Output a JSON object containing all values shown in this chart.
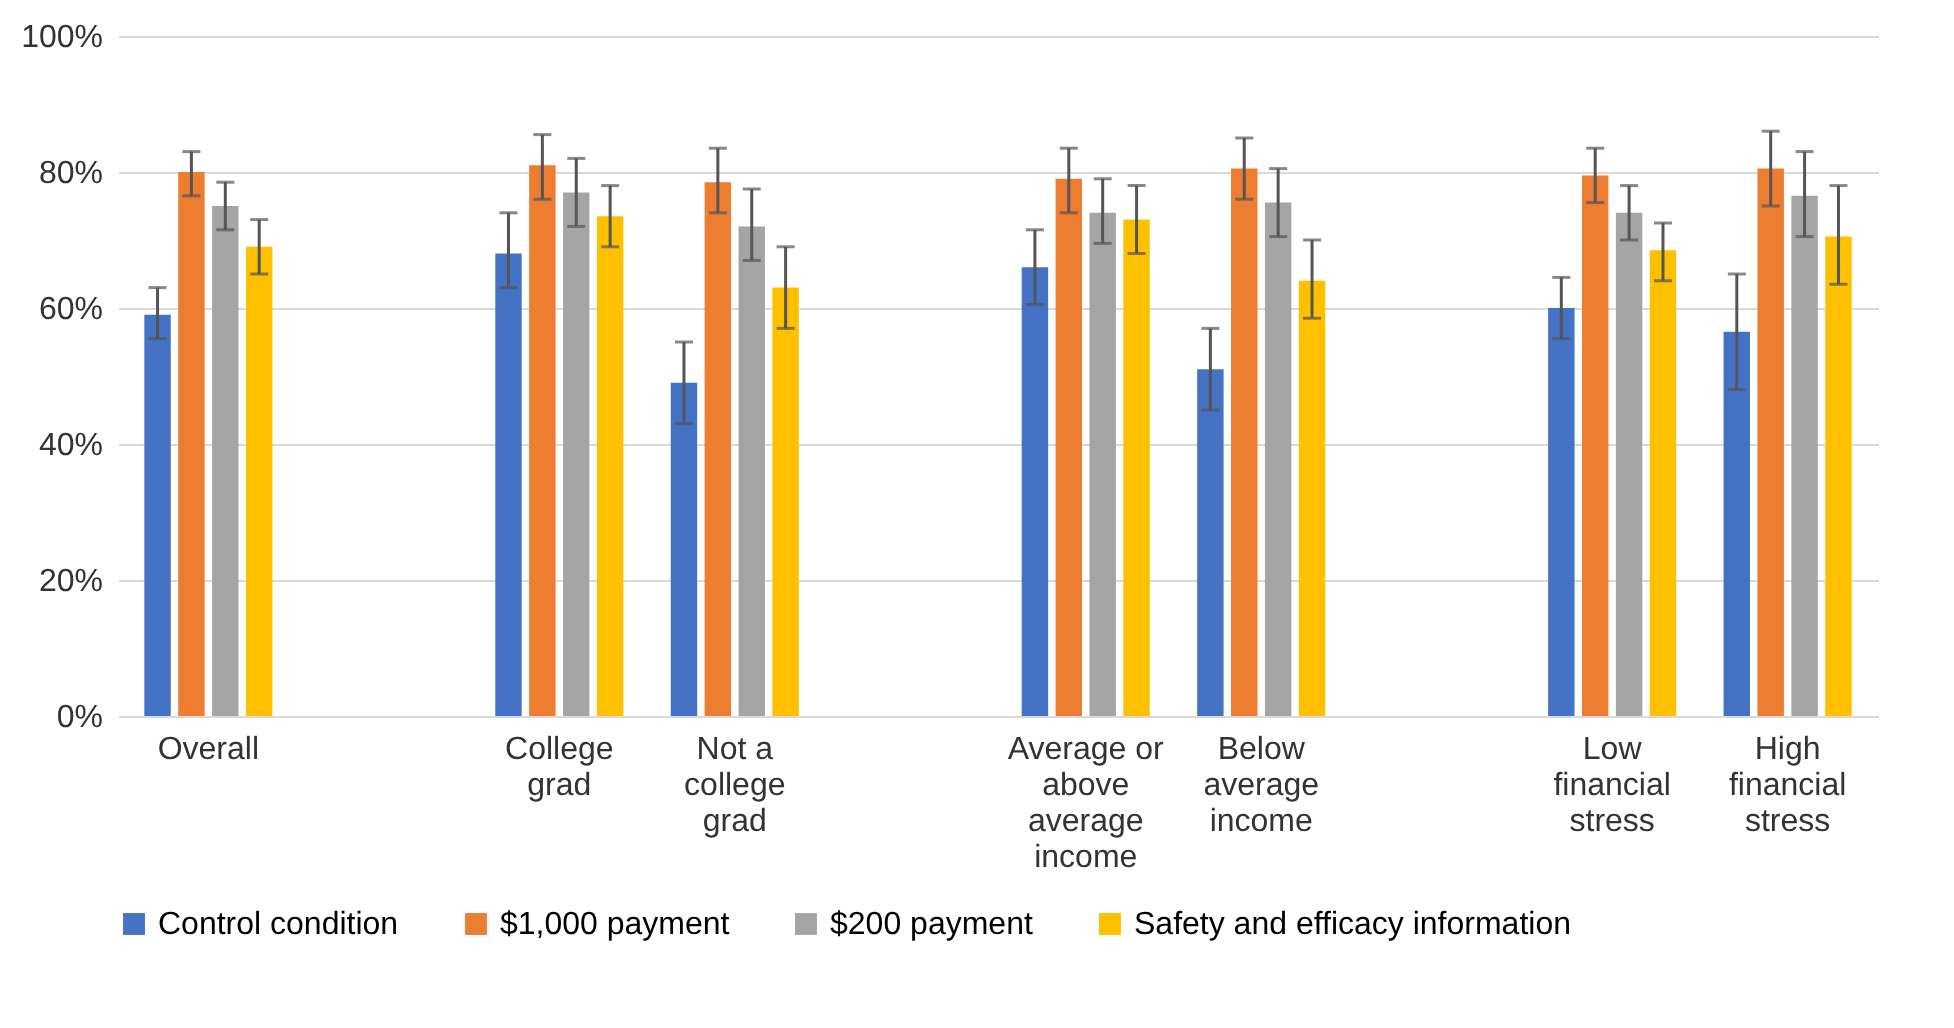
{
  "chart_data": {
    "type": "bar",
    "categories": [
      "Overall",
      null,
      "College grad",
      "Not a college grad",
      null,
      "Average or above average income",
      "Below average income",
      null,
      "Low financial stress",
      "High financial stress"
    ],
    "series": [
      {
        "name": "Control condition",
        "color": "#4472c4",
        "values": [
          59,
          null,
          68,
          49,
          null,
          66,
          51,
          null,
          60,
          56.5
        ],
        "errors": [
          [
            55.5,
            63
          ],
          null,
          [
            63,
            74
          ],
          [
            43,
            55
          ],
          null,
          [
            60.5,
            71.5
          ],
          [
            45,
            57
          ],
          null,
          [
            55.5,
            64.5
          ],
          [
            48,
            65
          ]
        ]
      },
      {
        "name": "$1,000 payment",
        "color": "#ed7d31",
        "values": [
          80,
          null,
          81,
          78.5,
          null,
          79,
          80.5,
          null,
          79.5,
          80.5
        ],
        "errors": [
          [
            76.5,
            83
          ],
          null,
          [
            76,
            85.5
          ],
          [
            74,
            83.5
          ],
          null,
          [
            74,
            83.5
          ],
          [
            76,
            85
          ],
          null,
          [
            75.5,
            83.5
          ],
          [
            75,
            86
          ]
        ]
      },
      {
        "name": "$200 payment",
        "color": "#a5a5a5",
        "values": [
          75,
          null,
          77,
          72,
          null,
          74,
          75.5,
          null,
          74,
          76.5
        ],
        "errors": [
          [
            71.5,
            78.5
          ],
          null,
          [
            72,
            82
          ],
          [
            67,
            77.5
          ],
          null,
          [
            69.5,
            79
          ],
          [
            70.5,
            80.5
          ],
          null,
          [
            70,
            78
          ],
          [
            70.5,
            83
          ]
        ]
      },
      {
        "name": "Safety and efficacy information",
        "color": "#ffc000",
        "values": [
          69,
          null,
          73.5,
          63,
          null,
          73,
          64,
          null,
          68.5,
          70.5
        ],
        "errors": [
          [
            65,
            73
          ],
          null,
          [
            69,
            78
          ],
          [
            57,
            69
          ],
          null,
          [
            68,
            78
          ],
          [
            58.5,
            70
          ],
          null,
          [
            64,
            72.5
          ],
          [
            63.5,
            78
          ]
        ]
      }
    ],
    "ylim": [
      0,
      100
    ],
    "yticks": [
      {
        "value": 0,
        "label": "0%"
      },
      {
        "value": 20,
        "label": "20%"
      },
      {
        "value": 40,
        "label": "40%"
      },
      {
        "value": 60,
        "label": "60%"
      },
      {
        "value": 80,
        "label": "80%"
      },
      {
        "value": 100,
        "label": "100%"
      }
    ],
    "grid": "y",
    "legend": "bottom"
  }
}
